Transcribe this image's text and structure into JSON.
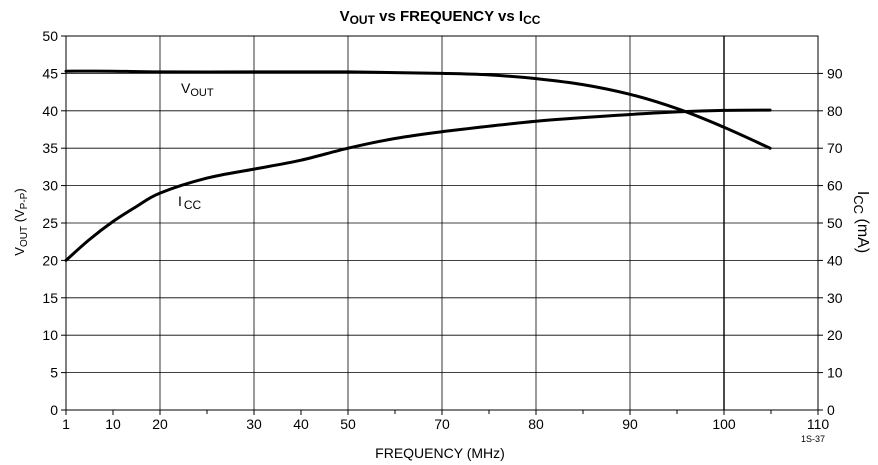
{
  "chart_data": {
    "type": "line",
    "title": {
      "main": "V",
      "sub1": "OUT",
      "mid": " vs FREQUENCY vs I",
      "sub2": "CC"
    },
    "xlabel": "FREQUENCY (MHz)",
    "ylabel_left": {
      "main": "V",
      "sub1": "OUT",
      "mid": " (V",
      "sub2": "P-P",
      "end": ")"
    },
    "ylabel_right": {
      "main": "I",
      "sub": "CC",
      "end": " (mA)"
    },
    "x_ticks": [
      {
        "label": "1",
        "pos": 0
      },
      {
        "label": "10",
        "pos": 1
      },
      {
        "label": "20",
        "pos": 2
      },
      {
        "label": "30",
        "pos": 4
      },
      {
        "label": "40",
        "pos": 5
      },
      {
        "label": "50",
        "pos": 6
      },
      {
        "label": "70",
        "pos": 8
      },
      {
        "label": "80",
        "pos": 10
      },
      {
        "label": "90",
        "pos": 12
      },
      {
        "label": "100",
        "pos": 14
      },
      {
        "label": "110",
        "pos": 16
      }
    ],
    "x_gridlines": [
      2,
      4,
      6,
      8,
      10,
      12,
      14
    ],
    "x_minor_ticks": [
      1,
      3,
      5,
      7,
      9,
      11,
      13,
      15
    ],
    "x_range": [
      0,
      16
    ],
    "y_left_ticks": [
      "0",
      "5",
      "10",
      "15",
      "20",
      "25",
      "30",
      "35",
      "40",
      "45",
      "50"
    ],
    "y_left_range": [
      0,
      50
    ],
    "y_right_ticks": [
      "0",
      "10",
      "20",
      "30",
      "40",
      "50",
      "60",
      "70",
      "80",
      "90"
    ],
    "y_right_range": [
      0,
      100
    ],
    "series": [
      {
        "name": "VOUT",
        "label": {
          "main": "V",
          "sub": "OUT"
        },
        "axis": "left",
        "points": [
          [
            0,
            45.3
          ],
          [
            1,
            45.3
          ],
          [
            2,
            45.2
          ],
          [
            4,
            45.2
          ],
          [
            5,
            45.2
          ],
          [
            6,
            45.2
          ],
          [
            8,
            45.0
          ],
          [
            9,
            44.8
          ],
          [
            10,
            44.3
          ],
          [
            11,
            43.5
          ],
          [
            12,
            42.2
          ],
          [
            13,
            40.3
          ],
          [
            14,
            37.8
          ],
          [
            14.98,
            35.0
          ]
        ]
      },
      {
        "name": "ICC",
        "label": {
          "main": "I",
          "sub": "CC"
        },
        "axis": "left",
        "points": [
          [
            0,
            20.0
          ],
          [
            0.5,
            22.8
          ],
          [
            1,
            25.2
          ],
          [
            1.5,
            27.2
          ],
          [
            2,
            29.0
          ],
          [
            3,
            31.0
          ],
          [
            4,
            32.2
          ],
          [
            5,
            33.4
          ],
          [
            6,
            35.0
          ],
          [
            7,
            36.3
          ],
          [
            8,
            37.2
          ],
          [
            10,
            38.6
          ],
          [
            12,
            39.5
          ],
          [
            13,
            39.85
          ],
          [
            14,
            40.05
          ],
          [
            14.98,
            40.1
          ]
        ]
      }
    ],
    "footnote": "1S-37",
    "grid": true
  }
}
